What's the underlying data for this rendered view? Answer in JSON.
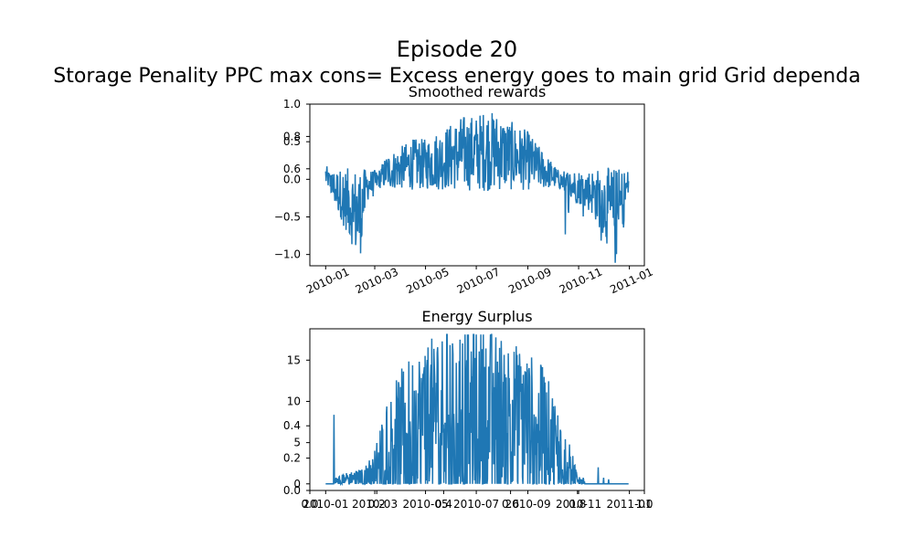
{
  "figure": {
    "title": "Episode 20",
    "subtitle": "Storage Penality  PPC max cons= Excess energy goes to main grid  Grid dependa"
  },
  "colors": {
    "line": "#1f77b4",
    "axis": "#000000",
    "background": "#ffffff"
  },
  "chart_data": [
    {
      "type": "line",
      "title": "Smoothed rewards",
      "xlabel": "",
      "ylabel": "",
      "x_range": [
        "2009-12-13",
        "2011-01-19"
      ],
      "ylim": [
        -1.15,
        1.0
      ],
      "grid": false,
      "xticks": [
        "2010-01",
        "2010-03",
        "2010-05",
        "2010-07",
        "2010-09",
        "2010-11",
        "2011-01"
      ],
      "yticks": [
        1.0,
        0.5,
        0.0,
        -0.5,
        -1.0
      ],
      "ytick_labels": [
        "1.0",
        "0.5",
        "0.0",
        "−0.5",
        "−1.0"
      ],
      "overlay_yticks": [
        {
          "label": "0.8",
          "frac": 0.8
        },
        {
          "label": "0.6",
          "frac": 0.6
        }
      ],
      "series": [
        {
          "x": [
            "2010-01-01",
            "2010-01-10",
            "2010-01-20",
            "2010-02-01",
            "2010-02-10",
            "2010-02-20",
            "2010-03-01",
            "2010-03-15",
            "2010-04-01",
            "2010-04-15",
            "2010-05-01",
            "2010-05-15",
            "2010-06-01",
            "2010-06-15",
            "2010-07-01",
            "2010-07-15",
            "2010-08-01",
            "2010-08-15",
            "2010-09-01",
            "2010-09-15",
            "2010-10-01",
            "2010-10-15",
            "2010-11-01",
            "2010-11-15",
            "2010-12-01",
            "2010-12-15",
            "2010-12-31"
          ],
          "values": [
            0.05,
            -0.1,
            -0.2,
            -0.35,
            -0.5,
            -0.08,
            -0.05,
            0.1,
            0.15,
            0.2,
            0.2,
            0.25,
            0.3,
            0.35,
            0.35,
            0.4,
            0.35,
            0.3,
            0.25,
            0.15,
            0.05,
            -0.05,
            -0.1,
            -0.15,
            -0.3,
            -0.5,
            -0.05
          ]
        }
      ]
    },
    {
      "type": "line",
      "title": "Energy Surplus",
      "xlabel": "",
      "ylabel": "",
      "x_range": [
        "2009-12-13",
        "2011-01-19"
      ],
      "ylim": [
        -0.8,
        18.8
      ],
      "grid": false,
      "xticks": [
        "2010-01",
        "2010-03",
        "2010-05",
        "2010-07",
        "2010-09",
        "2010-11",
        "2011-01"
      ],
      "yticks": [
        0,
        5,
        10,
        15
      ],
      "ytick_labels": [
        "0",
        "5",
        "10",
        "15"
      ],
      "overlay_yticks": [
        {
          "label": "0.0",
          "frac": 0.0
        },
        {
          "label": "0.2",
          "frac": 0.2
        },
        {
          "label": "0.4",
          "frac": 0.4
        }
      ],
      "overlay_xticks": [
        "0.0",
        "0.2",
        "0.4",
        "0.6",
        "0.8",
        "1.0"
      ],
      "series": [
        {
          "x": [
            "2010-01-01",
            "2010-01-15",
            "2010-02-01",
            "2010-02-15",
            "2010-03-01",
            "2010-03-15",
            "2010-04-01",
            "2010-04-15",
            "2010-05-01",
            "2010-05-15",
            "2010-06-01",
            "2010-06-15",
            "2010-07-01",
            "2010-07-15",
            "2010-08-01",
            "2010-08-15",
            "2010-09-01",
            "2010-09-15",
            "2010-10-01",
            "2010-10-15",
            "2010-11-01",
            "2010-11-15",
            "2010-12-01",
            "2010-12-15",
            "2010-12-31"
          ],
          "values": [
            0.0,
            0.4,
            0.7,
            0.8,
            1.8,
            4.5,
            6.0,
            7.0,
            7.5,
            8.0,
            8.5,
            8.5,
            8.5,
            8.5,
            8.0,
            7.5,
            7.0,
            6.5,
            5.0,
            3.0,
            0.5,
            0.1,
            0.1,
            0.0,
            0.0
          ]
        }
      ]
    }
  ]
}
